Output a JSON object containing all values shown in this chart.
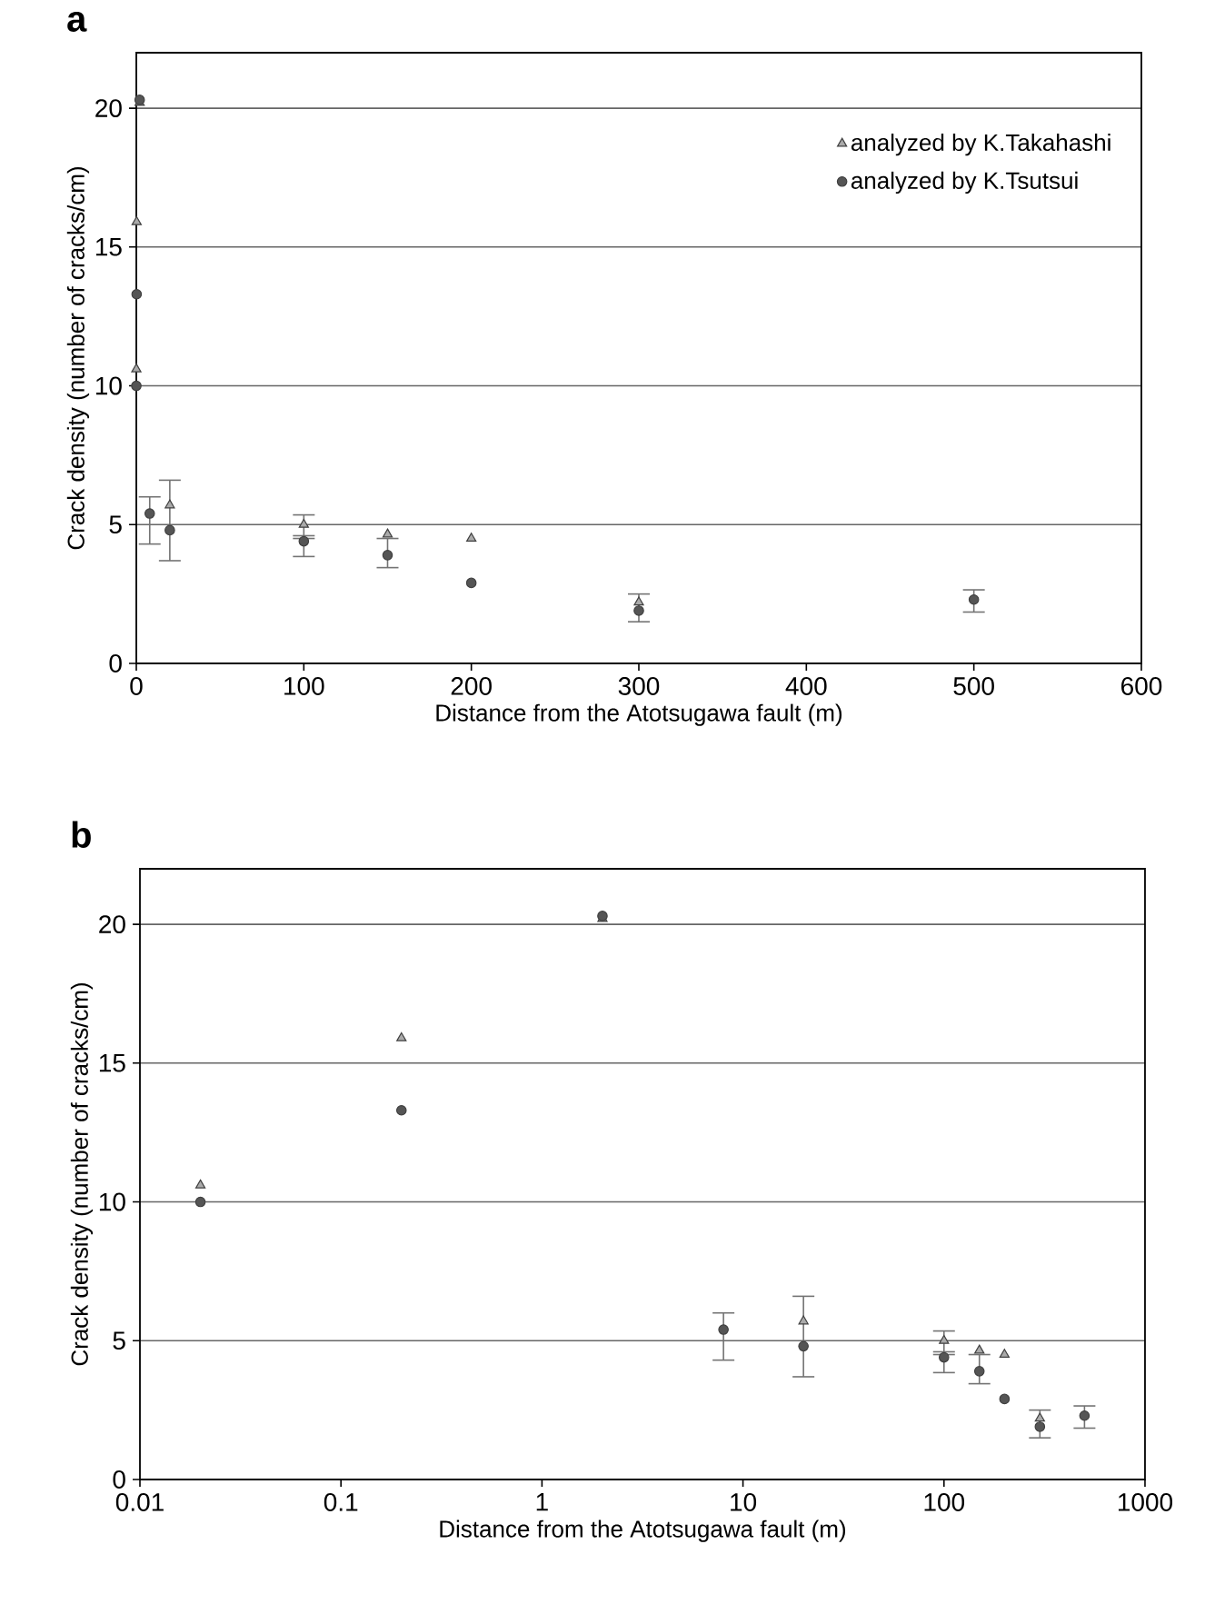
{
  "chart_data": [
    {
      "type": "scatter",
      "title": "a",
      "xlabel": "Distance from the Atotsugawa fault (m)",
      "ylabel": "Crack density (number of cracks/cm)",
      "xlim": [
        0,
        600
      ],
      "xticks": [
        0,
        100,
        200,
        300,
        400,
        500,
        600
      ],
      "ylim": [
        0,
        22
      ],
      "yticks": [
        0,
        5,
        10,
        15,
        20
      ],
      "grid": "y",
      "legend": "top right",
      "series": [
        {
          "name": "analyzed by K.Takahashi",
          "color": "#aaaaaa",
          "marker": "triangle",
          "x": [
            0.02,
            0.2,
            2,
            20,
            100,
            150,
            200,
            300
          ],
          "values": [
            10.6,
            15.9,
            20.2,
            5.7,
            5.0,
            4.65,
            4.5,
            2.2
          ],
          "errors": [
            null,
            null,
            null,
            null,
            [
              4.6,
              5.35
            ],
            null,
            null,
            null
          ]
        },
        {
          "name": "analyzed by K.Tsutsui",
          "color": "#555555",
          "marker": "circle",
          "x": [
            0.02,
            0.2,
            2,
            8,
            20,
            100,
            150,
            200,
            300,
            500
          ],
          "values": [
            10.0,
            13.3,
            20.3,
            5.4,
            4.8,
            4.4,
            3.9,
            2.9,
            1.9,
            2.3
          ],
          "errors": [
            null,
            null,
            null,
            [
              4.3,
              6.0
            ],
            [
              3.7,
              6.6
            ],
            [
              3.85,
              4.5
            ],
            [
              3.45,
              4.5
            ],
            null,
            [
              1.5,
              2.5
            ],
            [
              1.85,
              2.65
            ]
          ]
        }
      ]
    },
    {
      "type": "scatter",
      "title": "b",
      "xlabel": "Distance from the Atotsugawa fault (m)",
      "ylabel": "Crack density (number of cracks/cm)",
      "log": "x",
      "xlim": [
        0.01,
        1000
      ],
      "xticks": [
        0.01,
        0.1,
        1,
        10,
        100,
        1000
      ],
      "ylim": [
        0,
        22
      ],
      "yticks": [
        0,
        5,
        10,
        15,
        20
      ],
      "grid": "y",
      "series": [
        {
          "color": "#aaaaaa",
          "marker": "triangle",
          "x": [
            0.02,
            0.2,
            2,
            20,
            100,
            150,
            200,
            300
          ],
          "values": [
            10.6,
            15.9,
            20.2,
            5.7,
            5.0,
            4.65,
            4.5,
            2.2
          ],
          "errors": [
            null,
            null,
            null,
            null,
            [
              4.6,
              5.35
            ],
            null,
            null,
            null
          ]
        },
        {
          "color": "#555555",
          "marker": "circle",
          "x": [
            0.02,
            0.2,
            2,
            8,
            20,
            100,
            150,
            200,
            300,
            500
          ],
          "values": [
            10.0,
            13.3,
            20.3,
            5.4,
            4.8,
            4.4,
            3.9,
            2.9,
            1.9,
            2.3
          ],
          "errors": [
            null,
            null,
            null,
            [
              4.3,
              6.0
            ],
            [
              3.7,
              6.6
            ],
            [
              3.85,
              4.5
            ],
            [
              3.45,
              4.5
            ],
            null,
            [
              1.5,
              2.5
            ],
            [
              1.85,
              2.65
            ]
          ]
        }
      ]
    }
  ]
}
